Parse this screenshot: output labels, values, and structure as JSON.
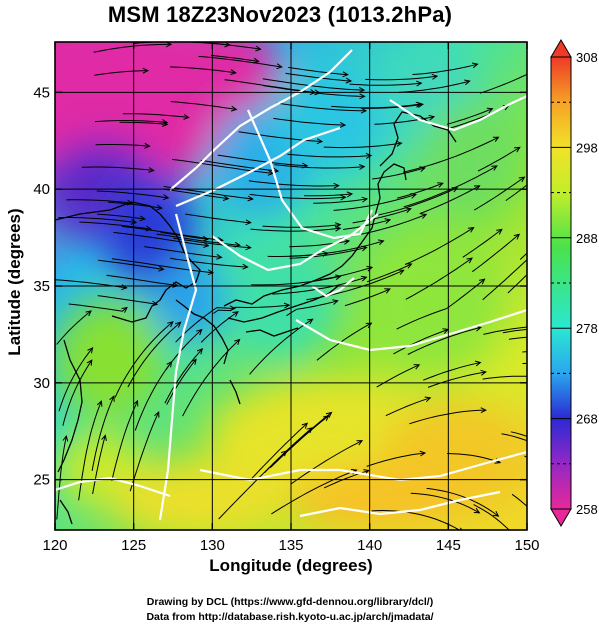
{
  "title": "MSM 18Z23Nov2023 (1013.2hPa)",
  "x_axis": {
    "label": "Longitude (degrees)",
    "ticks": [
      {
        "v": 120,
        "t": "120"
      },
      {
        "v": 125,
        "t": "125"
      },
      {
        "v": 130,
        "t": "130"
      },
      {
        "v": 135,
        "t": "135"
      },
      {
        "v": 140,
        "t": "140"
      },
      {
        "v": 145,
        "t": "145"
      },
      {
        "v": 150,
        "t": "150"
      }
    ],
    "range": [
      120,
      150
    ]
  },
  "y_axis": {
    "label": "Latitude  (degrees)",
    "ticks": [
      {
        "v": 25,
        "t": "25"
      },
      {
        "v": 30,
        "t": "30"
      },
      {
        "v": 35,
        "t": "35"
      },
      {
        "v": 40,
        "t": "40"
      },
      {
        "v": 45,
        "t": "45"
      }
    ],
    "range": [
      22.4,
      47.6
    ]
  },
  "colorbar": {
    "range": [
      258,
      308
    ],
    "labels": [
      {
        "v": 308,
        "t": "308"
      },
      {
        "v": 298,
        "t": "298"
      },
      {
        "v": 288,
        "t": "288"
      },
      {
        "v": 278,
        "t": "278"
      },
      {
        "v": 268,
        "t": "268"
      },
      {
        "v": 258,
        "t": "258"
      }
    ],
    "colors": [
      "#e8289a",
      "#8a28c8",
      "#2a2ad2",
      "#2aa6ee",
      "#2ae8d2",
      "#4ae24a",
      "#c2ee2a",
      "#f2e228",
      "#f6a226",
      "#ee3a26"
    ]
  },
  "credits": {
    "line1": "Drawing by DCL (https://www.gfd-dennou.org/library/dcl/)",
    "line2": "Data from http://database.rish.kyoto-u.ac.jp/arch/jmadata/"
  }
}
